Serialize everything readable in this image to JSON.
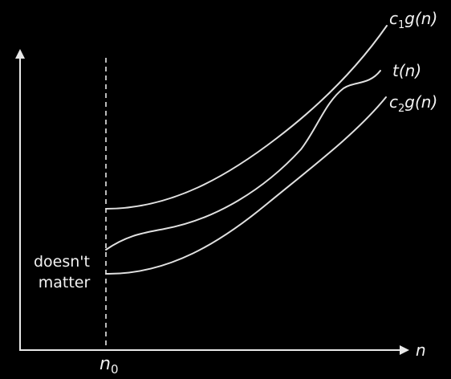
{
  "colors": {
    "background": "#000000",
    "axis": "#e8e8e8",
    "curve": "#e0e0e0",
    "text": "#f2f2f2",
    "dashed_line": "#e8e8e8"
  },
  "labels": {
    "c1g": {
      "c": "c",
      "sub": "1",
      "rest": "g(n)"
    },
    "t": "t(n)",
    "c2g": {
      "c": "c",
      "sub": "2",
      "rest": "g(n)"
    },
    "x_axis": "n",
    "n0": {
      "n": "n",
      "sub": "0"
    },
    "note_line1": "doesn't",
    "note_line2": "matter"
  }
}
